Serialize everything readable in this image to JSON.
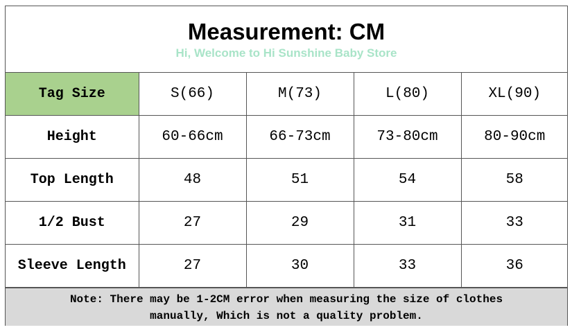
{
  "header": {
    "title": "Measurement:  CM",
    "subtitle": "Hi, Welcome to Hi Sunshine Baby Store"
  },
  "table": {
    "rows": [
      [
        "Tag Size",
        "S(66)",
        "M(73)",
        "L(80)",
        "XL(90)"
      ],
      [
        "Height",
        "60-66cm",
        "66-73cm",
        "73-80cm",
        "80-90cm"
      ],
      [
        "Top Length",
        48,
        51,
        54,
        58
      ],
      [
        "1/2 Bust",
        27,
        29,
        31,
        33
      ],
      [
        "Sleeve Length",
        27,
        30,
        33,
        36
      ]
    ]
  },
  "note": {
    "lines": [
      "Note: There may be 1-2CM error when measuring the size of clothes",
      "manually, Which is not a quality problem."
    ]
  }
}
